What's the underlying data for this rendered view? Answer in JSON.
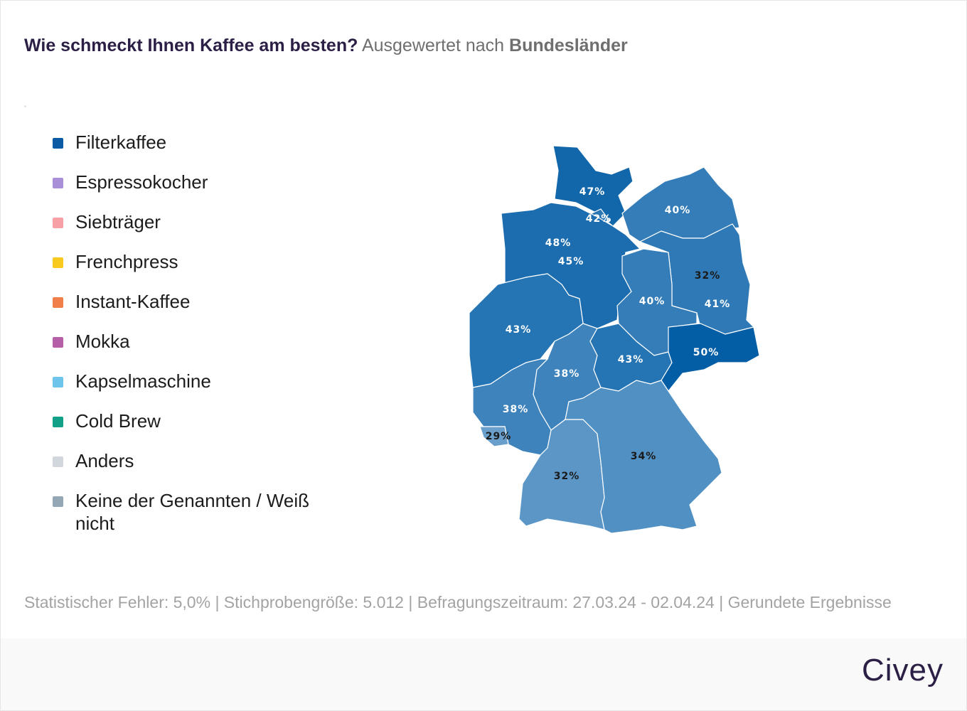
{
  "header": {
    "question": "Wie schmeckt Ihnen Kaffee am besten?",
    "subtitle_prefix": "Ausgewertet nach",
    "dimension": "Bundesländer"
  },
  "legend": [
    {
      "label": "Filterkaffee",
      "color": "#0a5ba4"
    },
    {
      "label": "Espressokocher",
      "color": "#a98ed8"
    },
    {
      "label": "Siebträger",
      "color": "#f7a1a7"
    },
    {
      "label": "Frenchpress",
      "color": "#f8c91f"
    },
    {
      "label": "Instant-Kaffee",
      "color": "#f07f49"
    },
    {
      "label": "Mokka",
      "color": "#b65fa9"
    },
    {
      "label": "Kapselmaschine",
      "color": "#6ec5eb"
    },
    {
      "label": "Cold Brew",
      "color": "#13a088"
    },
    {
      "label": "Anders",
      "color": "#d2d7dd"
    },
    {
      "label": "Keine der Genannten / Weiß nicht",
      "color": "#94a7b5"
    }
  ],
  "chart_data": {
    "type": "choropleth",
    "shown_answer": "Filterkaffee",
    "unit": "%",
    "regions": [
      {
        "name": "Schleswig-Holstein",
        "value": 47,
        "label": "47%"
      },
      {
        "name": "Hamburg",
        "value": 42,
        "label": "42%"
      },
      {
        "name": "Bremen",
        "value": 48,
        "label": "48%"
      },
      {
        "name": "Niedersachsen",
        "value": 45,
        "label": "45%"
      },
      {
        "name": "Mecklenburg-Vorpommern",
        "value": 40,
        "label": "40%"
      },
      {
        "name": "Berlin",
        "value": 32,
        "label": "32%"
      },
      {
        "name": "Brandenburg",
        "value": 41,
        "label": "41%"
      },
      {
        "name": "Sachsen-Anhalt",
        "value": 40,
        "label": "40%"
      },
      {
        "name": "Nordrhein-Westfalen",
        "value": 43,
        "label": "43%"
      },
      {
        "name": "Hessen",
        "value": 38,
        "label": "38%"
      },
      {
        "name": "Thüringen",
        "value": 43,
        "label": "43%"
      },
      {
        "name": "Sachsen",
        "value": 50,
        "label": "50%"
      },
      {
        "name": "Rheinland-Pfalz",
        "value": 38,
        "label": "38%"
      },
      {
        "name": "Saarland",
        "value": 29,
        "label": "29%"
      },
      {
        "name": "Baden-Württemberg",
        "value": 32,
        "label": "32%"
      },
      {
        "name": "Bayern",
        "value": 34,
        "label": "34%"
      }
    ],
    "color_scale": {
      "low": "#6a9fcc",
      "high": "#035ea6"
    }
  },
  "footer": {
    "note": "Statistischer Fehler: 5,0% | Stichprobengröße: 5.012 | Befragungszeitraum: 27.03.24 - 02.04.24 | Gerundete Ergebnisse",
    "brand": "Civey"
  }
}
